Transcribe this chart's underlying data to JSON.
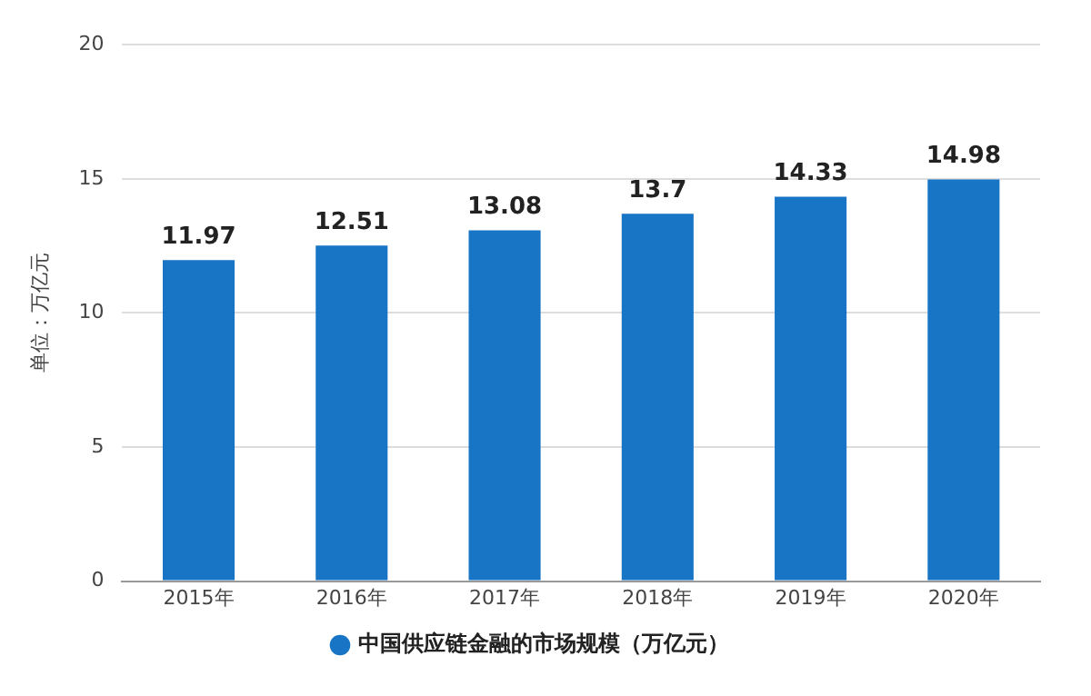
{
  "chart_data": {
    "type": "bar",
    "ylabel": "单位：万亿元",
    "categories": [
      "2015年",
      "2016年",
      "2017年",
      "2018年",
      "2019年",
      "2020年"
    ],
    "series": [
      {
        "name": "中国供应链金融的市场规模（万亿元）",
        "color": "#1874c4",
        "values": [
          11.97,
          12.51,
          13.08,
          13.7,
          14.33,
          14.98
        ]
      }
    ],
    "ylim": [
      0,
      20
    ],
    "yticks": [
      0,
      5,
      10,
      15,
      20
    ],
    "grid": "y",
    "legend": "bottom",
    "data_labels": true
  }
}
